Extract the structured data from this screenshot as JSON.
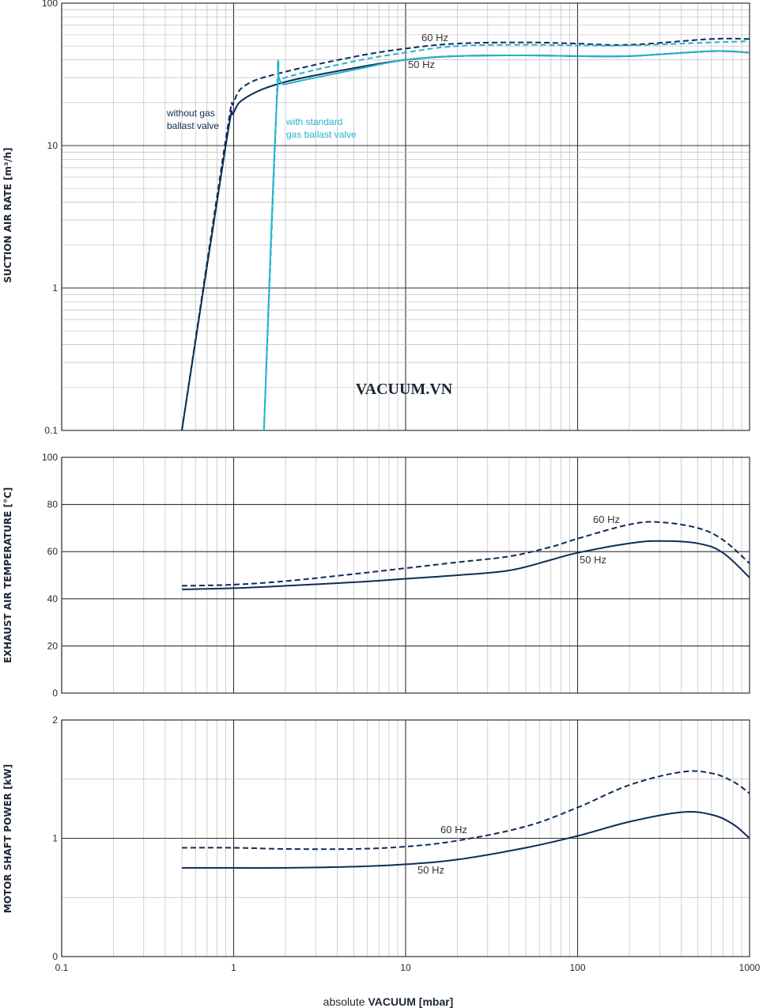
{
  "watermark": "VACUUM.VN",
  "xlabel": {
    "prefix": "absolute",
    "bold": "VACUUM",
    "unit": "[mbar]"
  },
  "x_ticks": [
    "0.1",
    "1",
    "10",
    "100",
    "1000"
  ],
  "colors": {
    "dark": "#0d2d55",
    "light": "#25b3cf",
    "grid": "#9a9a9a"
  },
  "chart_data": [
    {
      "type": "line",
      "ylabel": "SUCTION AIR RATE  [m³/h]",
      "xscale": "log",
      "yscale": "log",
      "xlim": [
        0.1,
        1000
      ],
      "ylim": [
        0.1,
        100
      ],
      "y_ticks": [
        "0.1",
        "1",
        "10",
        "100"
      ],
      "annotations": [
        "without gas",
        "ballast valve",
        "with standard",
        "gas ballast valve",
        "60 Hz",
        "50 Hz"
      ],
      "series": [
        {
          "name": "without gas ballast valve 50 Hz",
          "color": "dark",
          "dashed": false,
          "x": [
            0.5,
            0.9,
            1.0,
            1.2,
            2,
            5,
            10,
            20,
            50,
            100,
            200,
            600,
            1000
          ],
          "y": [
            0.1,
            10,
            17,
            22,
            28,
            35,
            40,
            42.5,
            43,
            42.5,
            42.5,
            46,
            45
          ]
        },
        {
          "name": "without gas ballast valve 60 Hz",
          "color": "dark",
          "dashed": true,
          "x": [
            0.5,
            0.9,
            1.0,
            1.2,
            2,
            5,
            10,
            20,
            50,
            100,
            200,
            600,
            1000
          ],
          "y": [
            0.1,
            11,
            20,
            27,
            33,
            42,
            48,
            52,
            53,
            52,
            51,
            56,
            56
          ]
        },
        {
          "name": "with standard gas ballast valve 50 Hz",
          "color": "light",
          "dashed": false,
          "x": [
            1.5,
            1.8,
            2,
            5,
            10,
            20,
            50,
            100,
            200,
            600,
            1000
          ],
          "y": [
            0.1,
            25,
            27,
            34,
            40,
            42.5,
            43,
            42.5,
            42.5,
            46,
            45
          ]
        },
        {
          "name": "with standard gas ballast valve 60 Hz",
          "color": "light",
          "dashed": true,
          "x": [
            1.5,
            1.75,
            1.8,
            2,
            5,
            10,
            20,
            50,
            100,
            200,
            600,
            1000
          ],
          "y": [
            0.1,
            12,
            26,
            30,
            39,
            45,
            50,
            51,
            50.5,
            50.5,
            53,
            54
          ]
        }
      ]
    },
    {
      "type": "line",
      "ylabel": "EXHAUST AIR TEMPERATURE  [°C]",
      "xscale": "log",
      "yscale": "linear",
      "xlim": [
        0.1,
        1000
      ],
      "ylim": [
        0,
        100
      ],
      "y_ticks": [
        "0",
        "20",
        "40",
        "60",
        "80",
        "100"
      ],
      "annotations": [
        "60 Hz",
        "50 Hz"
      ],
      "series": [
        {
          "name": "50 Hz",
          "color": "dark",
          "dashed": false,
          "x": [
            0.5,
            1,
            2,
            5,
            10,
            20,
            40,
            70,
            100,
            200,
            300,
            500,
            700,
            1000
          ],
          "y": [
            44,
            44.5,
            45.5,
            47,
            48.5,
            50,
            52,
            56.5,
            59.5,
            63.5,
            64.5,
            63.5,
            59.5,
            49
          ]
        },
        {
          "name": "60 Hz",
          "color": "dark",
          "dashed": true,
          "x": [
            0.5,
            1,
            2,
            5,
            10,
            20,
            40,
            70,
            100,
            200,
            300,
            500,
            700,
            1000
          ],
          "y": [
            45.5,
            46,
            47.5,
            50.5,
            53,
            55.5,
            58,
            62,
            65.5,
            71.5,
            72.5,
            70,
            65,
            55
          ]
        }
      ]
    },
    {
      "type": "line",
      "ylabel": "MOTOR SHAFT POWER  [kW]",
      "xscale": "log",
      "yscale": "linear",
      "xlim": [
        0.1,
        1000
      ],
      "ylim": [
        0,
        2
      ],
      "y_ticks": [
        "0",
        "1",
        "2"
      ],
      "annotations": [
        "60 Hz",
        "50 Hz"
      ],
      "series": [
        {
          "name": "50 Hz",
          "color": "dark",
          "dashed": false,
          "x": [
            0.5,
            1,
            2,
            5,
            10,
            20,
            50,
            100,
            200,
            400,
            600,
            800,
            1000
          ],
          "y": [
            0.75,
            0.75,
            0.75,
            0.76,
            0.78,
            0.82,
            0.92,
            1.02,
            1.14,
            1.22,
            1.2,
            1.12,
            1.0
          ]
        },
        {
          "name": "60 Hz",
          "color": "dark",
          "dashed": true,
          "x": [
            0.5,
            1,
            2,
            5,
            10,
            20,
            50,
            100,
            200,
            400,
            600,
            800,
            1000
          ],
          "y": [
            0.92,
            0.92,
            0.91,
            0.91,
            0.93,
            0.98,
            1.1,
            1.26,
            1.45,
            1.56,
            1.55,
            1.48,
            1.38
          ]
        }
      ]
    }
  ]
}
